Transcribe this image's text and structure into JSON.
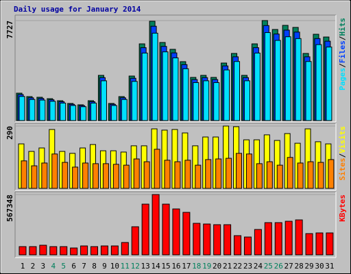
{
  "title": "Daily usage for January 2014",
  "chart_data": [
    {
      "type": "bar",
      "ylim": [
        0,
        7727
      ],
      "yticks": [
        7727
      ],
      "legend_separator": "/",
      "series": [
        {
          "name": "Hits",
          "color": "#00805c",
          "values": [
            2117,
            1852,
            1800,
            1693,
            1535,
            1323,
            1217,
            1535,
            3493,
            1323,
            1852,
            3440,
            5927,
            7674,
            6033,
            5504,
            4551,
            3334,
            3493,
            3334,
            4445,
            5186,
            3493,
            5927,
            7727,
            7038,
            7356,
            7197,
            5186,
            6668,
            6456
          ]
        },
        {
          "name": "Files",
          "color": "#0040ff",
          "values": [
            2011,
            1759,
            1710,
            1608,
            1458,
            1257,
            1156,
            1458,
            3318,
            1257,
            1759,
            3268,
            5631,
            7290,
            5731,
            5229,
            4323,
            3167,
            3318,
            3167,
            4223,
            4927,
            3318,
            5631,
            7341,
            6686,
            6988,
            6837,
            4927,
            6335,
            6133
          ]
        },
        {
          "name": "Pages",
          "color": "#00e0ff",
          "values": [
            1863,
            1630,
            1584,
            1490,
            1351,
            1164,
            1071,
            1351,
            3074,
            1164,
            1630,
            3027,
            5216,
            6753,
            5309,
            4844,
            4005,
            2934,
            3074,
            2934,
            3912,
            4564,
            3074,
            5216,
            6798,
            6193,
            6473,
            6333,
            4564,
            5868,
            5681
          ]
        }
      ]
    },
    {
      "type": "bar",
      "ylim": [
        0,
        290
      ],
      "yticks": [
        290
      ],
      "legend_separator": "/",
      "series": [
        {
          "name": "Visits",
          "color": "#ffff00",
          "values": [
            207,
            172,
            188,
            274,
            172,
            163,
            188,
            204,
            175,
            175,
            169,
            198,
            198,
            277,
            271,
            274,
            258,
            198,
            239,
            239,
            290,
            287,
            226,
            226,
            249,
            223,
            255,
            210,
            277,
            217,
            207
          ]
        },
        {
          "name": "Sites",
          "color": "#ff8000",
          "values": [
            128,
            105,
            118,
            160,
            121,
            99,
            118,
            115,
            115,
            112,
            108,
            137,
            124,
            182,
            131,
            124,
            131,
            108,
            134,
            137,
            140,
            163,
            160,
            115,
            124,
            108,
            144,
            118,
            124,
            121,
            134
          ]
        }
      ]
    },
    {
      "type": "bar",
      "ylim": [
        0,
        567348
      ],
      "yticks": [
        567348
      ],
      "legend_separator": "/",
      "categories": [
        "1",
        "2",
        "3",
        "4",
        "5",
        "6",
        "7",
        "8",
        "9",
        "10",
        "11",
        "12",
        "13",
        "14",
        "15",
        "16",
        "17",
        "18",
        "19",
        "20",
        "21",
        "22",
        "23",
        "24",
        "25",
        "26",
        "27",
        "28",
        "29",
        "30",
        "31"
      ],
      "category_colors": [
        "#000000",
        "#000000",
        "#000000",
        "#00805c",
        "#00805c",
        "#000000",
        "#000000",
        "#000000",
        "#000000",
        "#000000",
        "#00805c",
        "#00805c",
        "#000000",
        "#000000",
        "#000000",
        "#000000",
        "#000000",
        "#00805c",
        "#00805c",
        "#000000",
        "#000000",
        "#000000",
        "#000000",
        "#000000",
        "#00805c",
        "#00805c",
        "#000000",
        "#000000",
        "#000000",
        "#000000",
        "#000000"
      ],
      "series": [
        {
          "name": "KBytes",
          "color": "#ff0000",
          "values": [
            77366,
            77366,
            90258,
            77366,
            77366,
            64470,
            83811,
            77366,
            83811,
            83811,
            116046,
            264327,
            477078,
            567348,
            477078,
            431949,
            399714,
            296562,
            290115,
            283668,
            283668,
            180516,
            167622,
            238539,
            303009,
            303009,
            315903,
            328797,
            199857,
            206304,
            206304
          ]
        }
      ]
    }
  ]
}
